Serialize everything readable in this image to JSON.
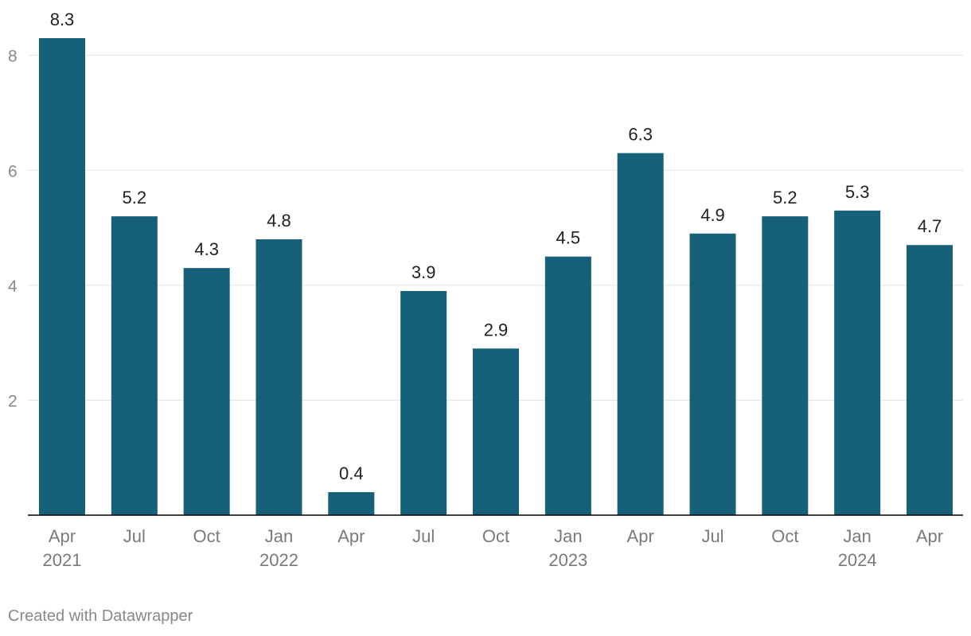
{
  "chart_data": {
    "type": "bar",
    "categories": [
      [
        "Apr",
        "2021"
      ],
      [
        "Jul",
        ""
      ],
      [
        "Oct",
        ""
      ],
      [
        "Jan",
        "2022"
      ],
      [
        "Apr",
        ""
      ],
      [
        "Jul",
        ""
      ],
      [
        "Oct",
        ""
      ],
      [
        "Jan",
        "2023"
      ],
      [
        "Apr",
        ""
      ],
      [
        "Jul",
        ""
      ],
      [
        "Oct",
        ""
      ],
      [
        "Jan",
        "2024"
      ],
      [
        "Apr",
        ""
      ]
    ],
    "values": [
      8.3,
      5.2,
      4.3,
      4.8,
      0.4,
      3.9,
      2.9,
      4.5,
      6.3,
      4.9,
      5.2,
      5.3,
      4.7
    ],
    "value_labels": [
      "8.3",
      "5.2",
      "4.3",
      "4.8",
      "0.4",
      "3.9",
      "2.9",
      "4.5",
      "6.3",
      "4.9",
      "5.2",
      "5.3",
      "4.7"
    ],
    "yticks": [
      2,
      4,
      6,
      8
    ],
    "ylim": [
      0,
      8.3
    ],
    "grid": true,
    "bar_color": "#16607a",
    "title": "",
    "xlabel": "",
    "ylabel": ""
  },
  "footer": {
    "credit": "Created with Datawrapper"
  }
}
